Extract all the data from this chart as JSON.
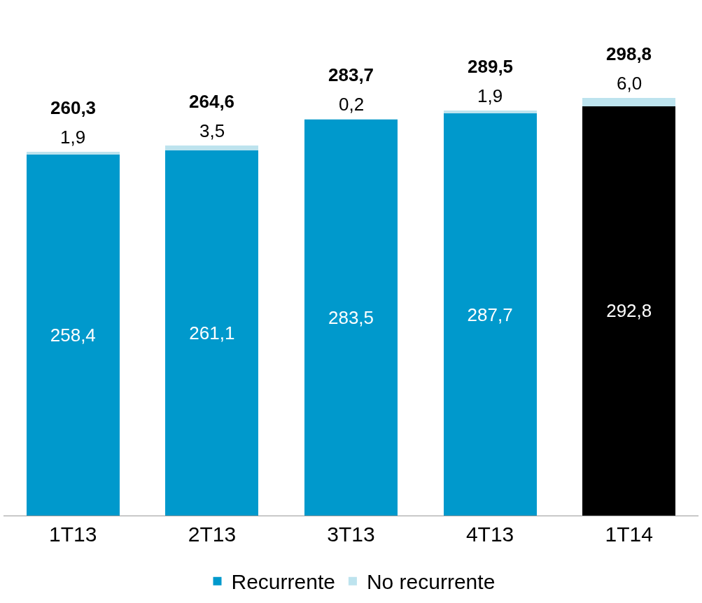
{
  "chart_data": {
    "type": "bar",
    "stacked": true,
    "categories": [
      "1T13",
      "2T13",
      "3T13",
      "4T13",
      "1T14"
    ],
    "series": [
      {
        "name": "Recurrente",
        "color": "#0099cc",
        "colors": [
          "#0099cc",
          "#0099cc",
          "#0099cc",
          "#0099cc",
          "#000000"
        ],
        "values": [
          258.4,
          261.1,
          283.5,
          287.7,
          292.8
        ],
        "value_labels": [
          "258,4",
          "261,1",
          "283,5",
          "287,7",
          "292,8"
        ]
      },
      {
        "name": "No recurrente",
        "color": "#bde3ee",
        "values": [
          1.9,
          3.5,
          0.2,
          1.9,
          6.0
        ],
        "value_labels": [
          "1,9",
          "3,5",
          "0,2",
          "1,9",
          "6,0"
        ]
      }
    ],
    "totals": [
      "260,3",
      "264,6",
      "283,7",
      "289,5",
      "298,8"
    ],
    "legend": "bottom"
  }
}
